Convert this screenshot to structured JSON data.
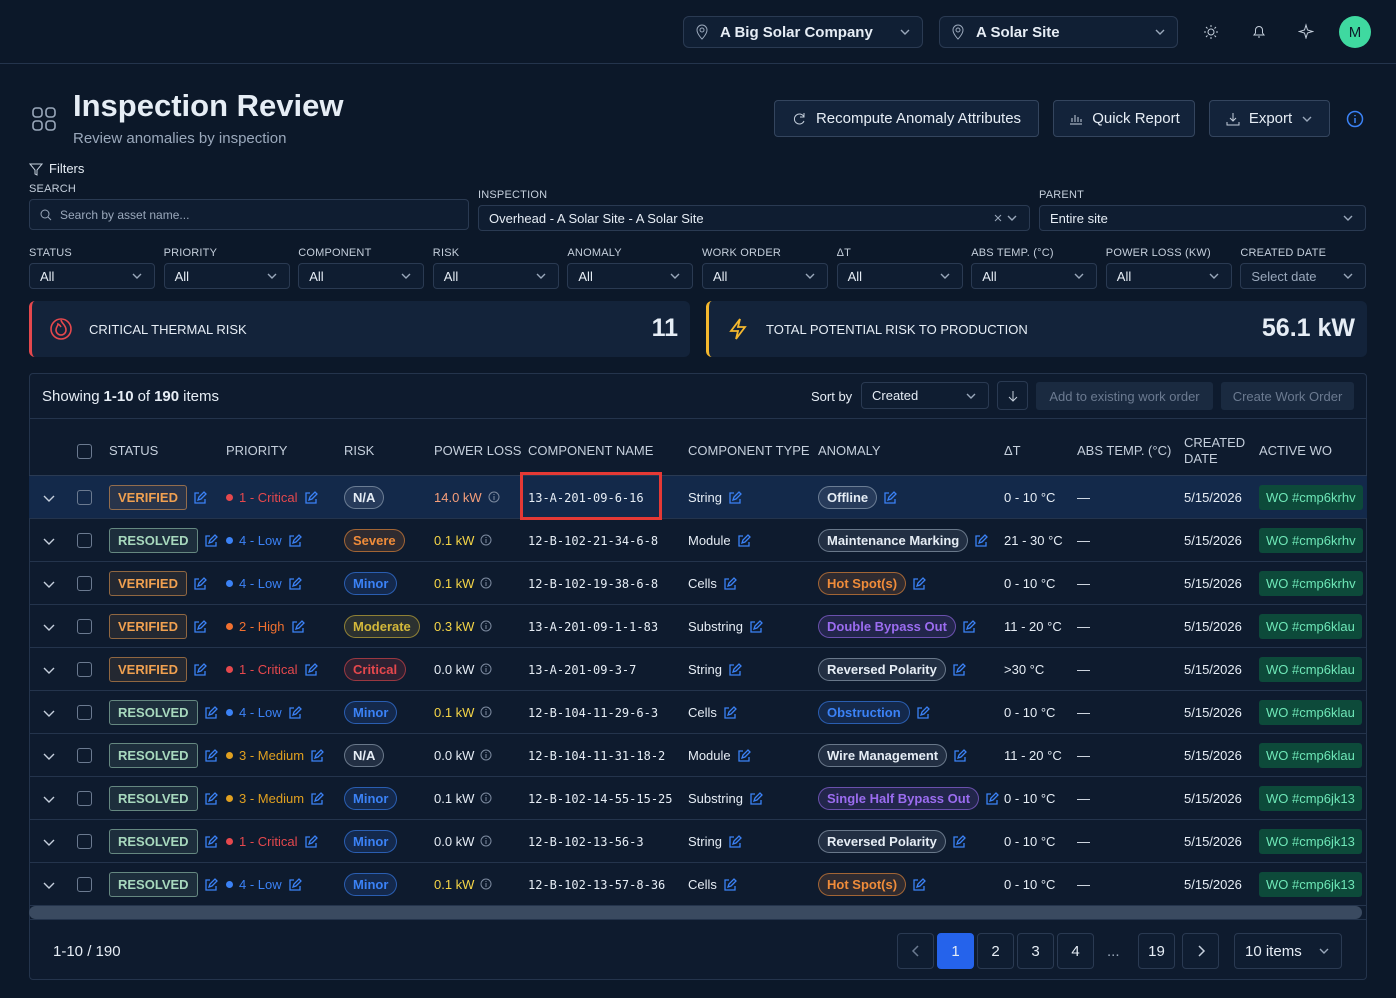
{
  "header": {
    "org": "A Big Solar Company",
    "site": "A Solar Site",
    "avatar": "M"
  },
  "page": {
    "title": "Inspection Review",
    "subtitle": "Review anomalies by inspection",
    "buttons": [
      "Recompute Anomaly Attributes",
      "Quick Report",
      "Export"
    ]
  },
  "filters": {
    "label": "Filters",
    "search": {
      "label": "SEARCH",
      "placeholder": "Search by asset name..."
    },
    "inspection": {
      "label": "INSPECTION",
      "value": "Overhead - A Solar Site - A Solar Site"
    },
    "parent": {
      "label": "PARENT",
      "value": "Entire site"
    },
    "selects": [
      {
        "label": "STATUS",
        "value": "All"
      },
      {
        "label": "PRIORITY",
        "value": "All"
      },
      {
        "label": "COMPONENT",
        "value": "All"
      },
      {
        "label": "RISK",
        "value": "All"
      },
      {
        "label": "ANOMALY",
        "value": "All"
      },
      {
        "label": "WORK ORDER",
        "value": "All"
      },
      {
        "label": "ΔT",
        "value": "All"
      },
      {
        "label": "ABS TEMP. (°C)",
        "value": "All"
      },
      {
        "label": "POWER LOSS (KW)",
        "value": "All"
      },
      {
        "label": "CREATED DATE",
        "value": "Select date"
      }
    ]
  },
  "kpis": [
    {
      "label": "CRITICAL THERMAL RISK",
      "value": "11",
      "color": "#e5484d"
    },
    {
      "label": "TOTAL POTENTIAL RISK TO PRODUCTION",
      "value": "56.1 kW",
      "color": "#f5b82e"
    }
  ],
  "toolbar": {
    "showing": [
      "Showing",
      "1-10",
      "of",
      "190",
      "items"
    ],
    "sort_label": "Sort by",
    "sort_value": "Created",
    "actions": [
      "Add to existing work order",
      "Create Work Order"
    ]
  },
  "table": {
    "columns": [
      "STATUS",
      "PRIORITY",
      "RISK",
      "POWER LOSS",
      "COMPONENT NAME",
      "COMPONENT TYPE",
      "ANOMALY",
      "ΔT",
      "ABS TEMP. (°C)",
      "CREATED DATE",
      "ACTIVE WO"
    ],
    "rows": [
      {
        "status": "VERIFIED",
        "status_color": "#f0a050",
        "priority": "1 - Critical",
        "priority_color": "#e5484d",
        "risk": "N/A",
        "risk_color": "#9aa8bb",
        "power_loss": "14.0 kW",
        "power_color": "#f59e7a",
        "component": "13-A-201-09-6-16",
        "type": "String",
        "anomaly": "Offline",
        "anomaly_color": "#9aa8bb",
        "delta_t": "0 - 10 °C",
        "abs_temp": "—",
        "created": "5/15/2026",
        "work_order": "WO #cmp6krhv"
      },
      {
        "status": "RESOLVED",
        "status_color": "#a7d8bd",
        "priority": "4 - Low",
        "priority_color": "#3b82f6",
        "risk": "Severe",
        "risk_color": "#f08c3a",
        "power_loss": "0.1 kW",
        "power_color": "#f5d547",
        "component": "12-B-102-21-34-6-8",
        "type": "Module",
        "anomaly": "Maintenance Marking",
        "anomaly_color": "#9aa8bb",
        "delta_t": "21 - 30 °C",
        "abs_temp": "—",
        "created": "5/15/2026",
        "work_order": "WO #cmp6krhv"
      },
      {
        "status": "VERIFIED",
        "status_color": "#f0a050",
        "priority": "4 - Low",
        "priority_color": "#3b82f6",
        "risk": "Minor",
        "risk_color": "#3b82f6",
        "power_loss": "0.1 kW",
        "power_color": "#f5d547",
        "component": "12-B-102-19-38-6-8",
        "type": "Cells",
        "anomaly": "Hot Spot(s)",
        "anomaly_color": "#f08c3a",
        "delta_t": "0 - 10 °C",
        "abs_temp": "—",
        "created": "5/15/2026",
        "work_order": "WO #cmp6krhv"
      },
      {
        "status": "VERIFIED",
        "status_color": "#f0a050",
        "priority": "2 - High",
        "priority_color": "#f07030",
        "risk": "Moderate",
        "risk_color": "#d4b83a",
        "power_loss": "0.3 kW",
        "power_color": "#f5d547",
        "component": "13-A-201-09-1-1-83",
        "type": "Substring",
        "anomaly": "Double Bypass Out",
        "anomaly_color": "#9b6cf0",
        "delta_t": "11 - 20 °C",
        "abs_temp": "—",
        "created": "5/15/2026",
        "work_order": "WO #cmp6klau"
      },
      {
        "status": "VERIFIED",
        "status_color": "#f0a050",
        "priority": "1 - Critical",
        "priority_color": "#e5484d",
        "risk": "Critical",
        "risk_color": "#e5484d",
        "power_loss": "0.0 kW",
        "power_color": "#e6edf5",
        "component": "13-A-201-09-3-7",
        "type": "String",
        "anomaly": "Reversed Polarity",
        "anomaly_color": "#9aa8bb",
        "delta_t": ">30 °C",
        "abs_temp": "—",
        "created": "5/15/2026",
        "work_order": "WO #cmp6klau"
      },
      {
        "status": "RESOLVED",
        "status_color": "#a7d8bd",
        "priority": "4 - Low",
        "priority_color": "#3b82f6",
        "risk": "Minor",
        "risk_color": "#3b82f6",
        "power_loss": "0.1 kW",
        "power_color": "#f5d547",
        "component": "12-B-104-11-29-6-3",
        "type": "Cells",
        "anomaly": "Obstruction",
        "anomaly_color": "#3b82f6",
        "delta_t": "0 - 10 °C",
        "abs_temp": "—",
        "created": "5/15/2026",
        "work_order": "WO #cmp6klau"
      },
      {
        "status": "RESOLVED",
        "status_color": "#a7d8bd",
        "priority": "3 - Medium",
        "priority_color": "#e0a020",
        "risk": "N/A",
        "risk_color": "#9aa8bb",
        "power_loss": "0.0 kW",
        "power_color": "#e6edf5",
        "component": "12-B-104-11-31-18-2",
        "type": "Module",
        "anomaly": "Wire Management",
        "anomaly_color": "#9aa8bb",
        "delta_t": "11 - 20 °C",
        "abs_temp": "—",
        "created": "5/15/2026",
        "work_order": "WO #cmp6klau"
      },
      {
        "status": "RESOLVED",
        "status_color": "#a7d8bd",
        "priority": "3 - Medium",
        "priority_color": "#e0a020",
        "risk": "Minor",
        "risk_color": "#3b82f6",
        "power_loss": "0.1 kW",
        "power_color": "#e6edf5",
        "component": "12-B-102-14-55-15-25",
        "type": "Substring",
        "anomaly": "Single Half Bypass Out",
        "anomaly_color": "#9b6cf0",
        "delta_t": "0 - 10 °C",
        "abs_temp": "—",
        "created": "5/15/2026",
        "work_order": "WO #cmp6jk13"
      },
      {
        "status": "RESOLVED",
        "status_color": "#a7d8bd",
        "priority": "1 - Critical",
        "priority_color": "#e5484d",
        "risk": "Minor",
        "risk_color": "#3b82f6",
        "power_loss": "0.0 kW",
        "power_color": "#e6edf5",
        "component": "12-B-102-13-56-3",
        "type": "String",
        "anomaly": "Reversed Polarity",
        "anomaly_color": "#9aa8bb",
        "delta_t": "0 - 10 °C",
        "abs_temp": "—",
        "created": "5/15/2026",
        "work_order": "WO #cmp6jk13"
      },
      {
        "status": "RESOLVED",
        "status_color": "#a7d8bd",
        "priority": "4 - Low",
        "priority_color": "#3b82f6",
        "risk": "Minor",
        "risk_color": "#3b82f6",
        "power_loss": "0.1 kW",
        "power_color": "#f5d547",
        "component": "12-B-102-13-57-8-36",
        "type": "Cells",
        "anomaly": "Hot Spot(s)",
        "anomaly_color": "#f08c3a",
        "delta_t": "0 - 10 °C",
        "abs_temp": "—",
        "created": "5/15/2026",
        "work_order": "WO #cmp6jk13"
      }
    ]
  },
  "pagination": {
    "summary": "1-10 / 190",
    "pages": [
      "1",
      "2",
      "3",
      "4",
      "...",
      "19"
    ],
    "page_size": "10 items"
  }
}
